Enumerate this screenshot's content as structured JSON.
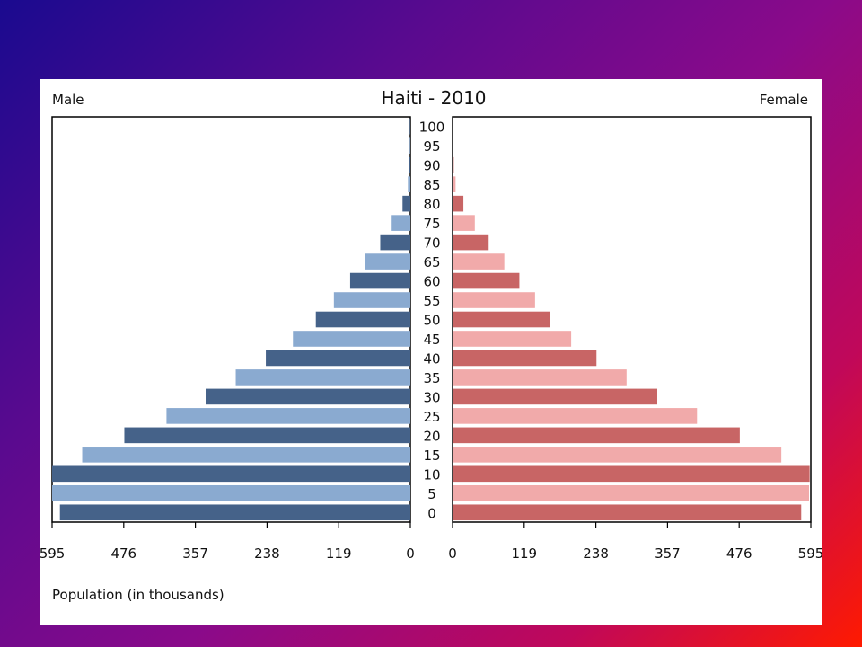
{
  "chart_data": {
    "type": "bar",
    "title": "Haiti - 2010",
    "left_label": "Male",
    "right_label": "Female",
    "xlabel": "Population (in thousands)",
    "xlim": [
      0,
      595
    ],
    "x_ticks_left": [
      "595",
      "476",
      "357",
      "238",
      "119",
      "0"
    ],
    "x_ticks_right": [
      "0",
      "119",
      "238",
      "357",
      "476",
      "595"
    ],
    "x_tick_values": [
      595,
      476,
      357,
      238,
      119,
      0
    ],
    "categories": [
      "100",
      "95",
      "90",
      "85",
      "80",
      "75",
      "70",
      "65",
      "60",
      "55",
      "50",
      "45",
      "40",
      "35",
      "30",
      "25",
      "20",
      "15",
      "10",
      "5",
      "0"
    ],
    "series": [
      {
        "name": "Male",
        "values": [
          1,
          1,
          2,
          4,
          13,
          31,
          50,
          76,
          100,
          127,
          157,
          195,
          240,
          290,
          340,
          405,
          475,
          545,
          595,
          595,
          582
        ]
      },
      {
        "name": "Female",
        "values": [
          1,
          1,
          2,
          5,
          18,
          37,
          60,
          86,
          111,
          137,
          162,
          197,
          239,
          289,
          340,
          406,
          477,
          546,
          593,
          592,
          579
        ]
      }
    ],
    "colors": {
      "male_dark": "#456289",
      "male_light": "#8aaad0",
      "female_dark": "#c86565",
      "female_light": "#f1aaaa"
    }
  }
}
